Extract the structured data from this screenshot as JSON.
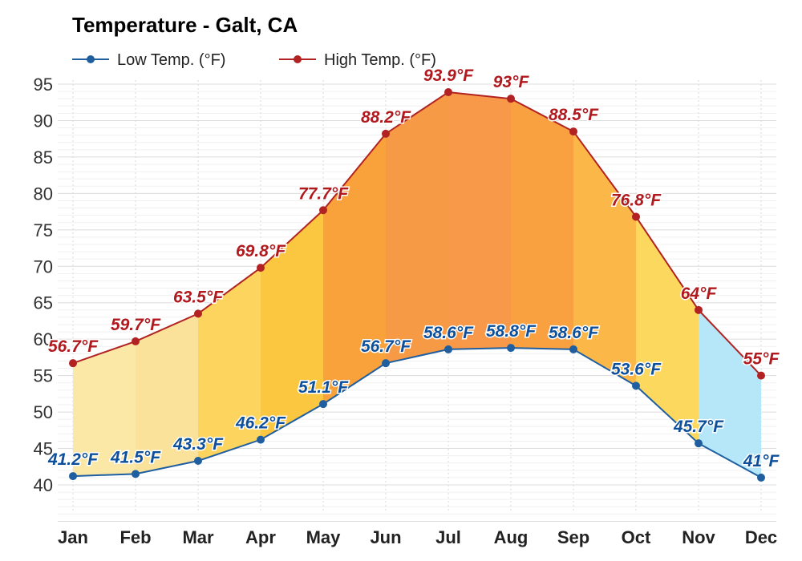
{
  "chart_data": {
    "type": "area",
    "title": "Temperature - Galt, CA",
    "xlabel": "",
    "ylabel": "",
    "categories": [
      "Jan",
      "Feb",
      "Mar",
      "Apr",
      "May",
      "Jun",
      "Jul",
      "Aug",
      "Sep",
      "Oct",
      "Nov",
      "Dec"
    ],
    "ylim": [
      35,
      95
    ],
    "yticks": [
      40,
      45,
      50,
      55,
      60,
      65,
      70,
      75,
      80,
      85,
      90,
      95
    ],
    "grid": true,
    "legend_position": "top-left",
    "series": [
      {
        "name": "Low Temp. (°F)",
        "color": "#1f5fa0",
        "label_color": "#0d4f9a",
        "values": [
          41.2,
          41.5,
          43.3,
          46.2,
          51.1,
          56.7,
          58.6,
          58.8,
          58.6,
          53.6,
          45.7,
          41
        ],
        "labels": [
          "41.2°F",
          "41.5°F",
          "43.3°F",
          "46.2°F",
          "51.1°F",
          "56.7°F",
          "58.6°F",
          "58.8°F",
          "58.6°F",
          "53.6°F",
          "45.7°F",
          "41°F"
        ]
      },
      {
        "name": "High Temp. (°F)",
        "color": "#b22222",
        "label_color": "#b0191e",
        "values": [
          56.7,
          59.7,
          63.5,
          69.8,
          77.7,
          88.2,
          93.9,
          93,
          88.5,
          76.8,
          64,
          55
        ],
        "labels": [
          "56.7°F",
          "59.7°F",
          "63.5°F",
          "69.8°F",
          "77.7°F",
          "88.2°F",
          "93.9°F",
          "93°F",
          "88.5°F",
          "76.8°F",
          "64°F",
          "55°F"
        ]
      }
    ],
    "band_colors": [
      "#fbe8a6",
      "#fbe29a",
      "#fcd45e",
      "#fbc640",
      "#f9a13b",
      "#f79a45",
      "#f79948",
      "#f9a040",
      "#fbb848",
      "#fcd85f",
      "#b6e7f8",
      "#b6e7f8"
    ]
  }
}
